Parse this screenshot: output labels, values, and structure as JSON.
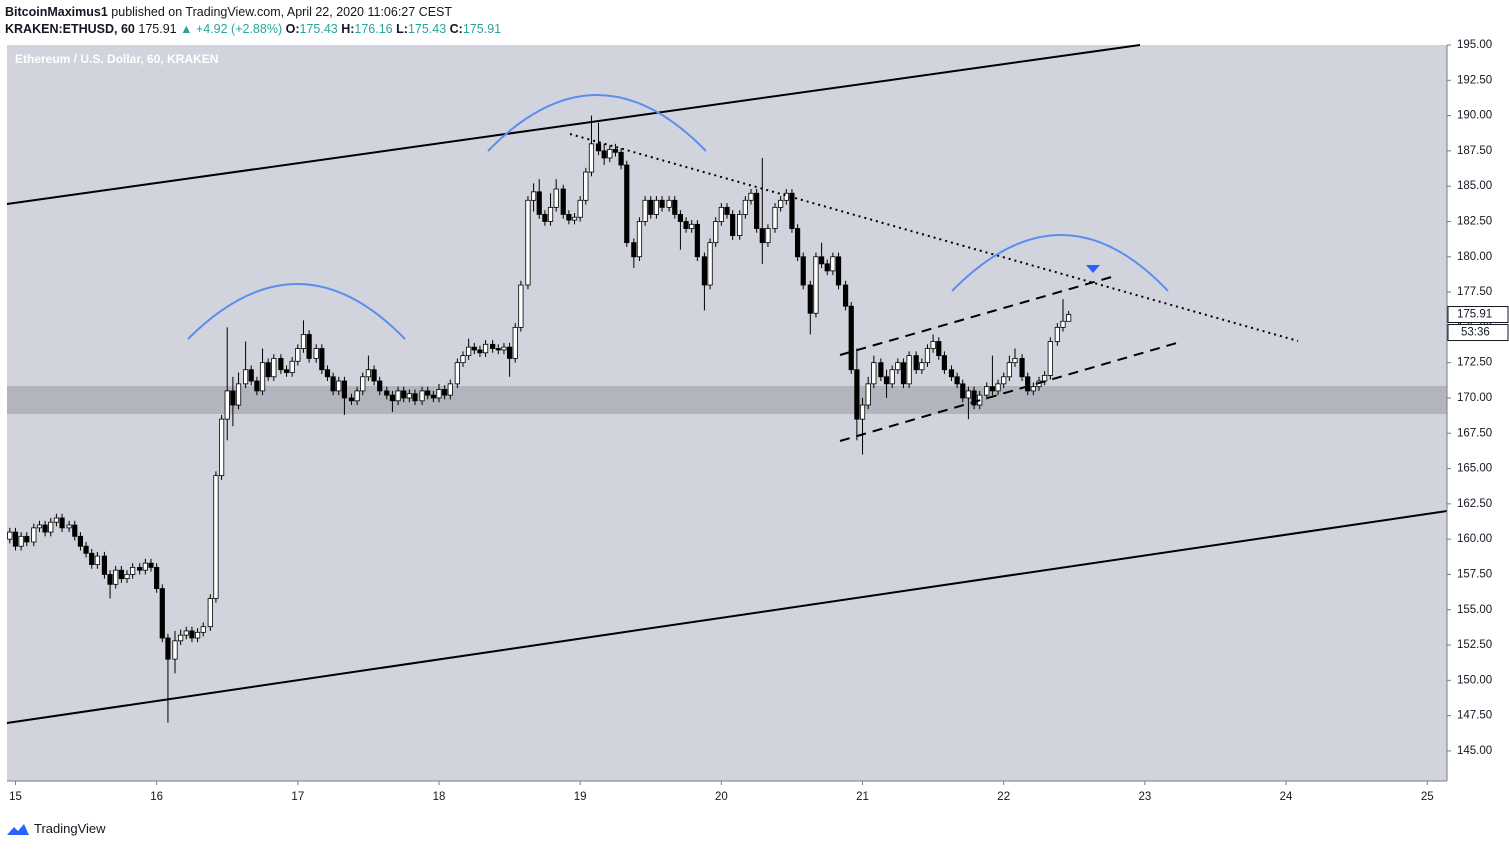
{
  "header": {
    "author": "BitcoinMaximus1",
    "published": "published on TradingView.com, April 22, 2020 11:06:27 CEST",
    "symbol": "KRAKEN:ETHUSD, 60",
    "last": "175.91",
    "change": "▲ +4.92 (+2.88%)",
    "open_label": "O:",
    "open": "175.43",
    "high_label": "H:",
    "high": "176.16",
    "low_label": "L:",
    "low": "175.43",
    "close_label": "C:",
    "close": "175.91"
  },
  "footer": {
    "brand": "TradingView"
  },
  "chart_data": {
    "type": "candlestick",
    "title": "Ethereum / U.S. Dollar, 60, KRAKEN",
    "up_color": "#ffffff",
    "down_color": "#000000",
    "wick_color": "#000000",
    "background": "#d1d4dc",
    "xlim": [
      14.94,
      25.14
    ],
    "xticks": [
      15,
      16,
      17,
      18,
      19,
      20,
      21,
      22,
      23,
      24,
      25
    ],
    "ylim": [
      142.87,
      195
    ],
    "yticks": [
      {
        "value": 145,
        "label": "145.00"
      },
      {
        "value": 147.5,
        "label": "147.50"
      },
      {
        "value": 150,
        "label": "150.00"
      },
      {
        "value": 152.5,
        "label": "152.50"
      },
      {
        "value": 155,
        "label": "155.00"
      },
      {
        "value": 157.5,
        "label": "157.50"
      },
      {
        "value": 160,
        "label": "160.00"
      },
      {
        "value": 162.5,
        "label": "162.50"
      },
      {
        "value": 165,
        "label": "165.00"
      },
      {
        "value": 167.5,
        "label": "167.50"
      },
      {
        "value": 170,
        "label": "170.00"
      },
      {
        "value": 172.5,
        "label": "172.50"
      },
      {
        "value": 175,
        "label": "175.00"
      },
      {
        "value": 177.5,
        "label": "177.50"
      },
      {
        "value": 180,
        "label": "180.00"
      },
      {
        "value": 182.5,
        "label": "182.50"
      },
      {
        "value": 185,
        "label": "185.00"
      },
      {
        "value": 187.5,
        "label": "187.50"
      },
      {
        "value": 190,
        "label": "190.00"
      },
      {
        "value": 192.5,
        "label": "192.50"
      },
      {
        "value": 195,
        "label": "195.00"
      }
    ],
    "price_tag": 175.91,
    "countdown": "53:36",
    "x": [
      14.96,
      15,
      15.04,
      15.08,
      15.13,
      15.17,
      15.21,
      15.25,
      15.29,
      15.33,
      15.38,
      15.42,
      15.46,
      15.5,
      15.54,
      15.58,
      15.63,
      15.67,
      15.71,
      15.75,
      15.79,
      15.83,
      15.88,
      15.92,
      15.96,
      16,
      16.04,
      16.08,
      16.13,
      16.17,
      16.21,
      16.25,
      16.29,
      16.33,
      16.38,
      16.42,
      16.46,
      16.5,
      16.54,
      16.58,
      16.63,
      16.67,
      16.71,
      16.75,
      16.79,
      16.83,
      16.88,
      16.92,
      16.96,
      17,
      17.04,
      17.08,
      17.13,
      17.17,
      17.21,
      17.25,
      17.29,
      17.33,
      17.38,
      17.42,
      17.46,
      17.5,
      17.54,
      17.58,
      17.63,
      17.67,
      17.71,
      17.75,
      17.79,
      17.83,
      17.88,
      17.92,
      17.96,
      18,
      18.04,
      18.08,
      18.13,
      18.17,
      18.21,
      18.25,
      18.29,
      18.33,
      18.38,
      18.42,
      18.46,
      18.5,
      18.54,
      18.58,
      18.63,
      18.67,
      18.71,
      18.75,
      18.79,
      18.83,
      18.88,
      18.92,
      18.96,
      19,
      19.04,
      19.08,
      19.13,
      19.17,
      19.21,
      19.25,
      19.29,
      19.33,
      19.38,
      19.42,
      19.46,
      19.5,
      19.54,
      19.58,
      19.63,
      19.67,
      19.71,
      19.75,
      19.79,
      19.83,
      19.88,
      19.92,
      19.96,
      20,
      20.04,
      20.08,
      20.13,
      20.17,
      20.21,
      20.25,
      20.29,
      20.33,
      20.38,
      20.42,
      20.46,
      20.5,
      20.54,
      20.58,
      20.63,
      20.67,
      20.71,
      20.75,
      20.79,
      20.83,
      20.88,
      20.92,
      20.96,
      21,
      21.04,
      21.08,
      21.13,
      21.17,
      21.21,
      21.25,
      21.29,
      21.33,
      21.38,
      21.42,
      21.46,
      21.5,
      21.54,
      21.58,
      21.63,
      21.67,
      21.71,
      21.75,
      21.79,
      21.83,
      21.88,
      21.92,
      21.96,
      22,
      22.04,
      22.08,
      22.13,
      22.17,
      22.21,
      22.25,
      22.29,
      22.33,
      22.38,
      22.42,
      22.46
    ],
    "open": [
      160,
      160.5,
      159.5,
      160.2,
      159.8,
      160.8,
      161,
      160.5,
      161.2,
      161.5,
      160.8,
      161,
      160.2,
      159.5,
      159,
      158.2,
      158.8,
      157.5,
      156.8,
      157.8,
      157.2,
      157.5,
      158,
      157.8,
      158.3,
      158,
      156.5,
      153,
      151.5,
      152.8,
      153.2,
      153.5,
      153,
      153.4,
      153.8,
      155.8,
      164.5,
      168.5,
      170.5,
      169.5,
      171,
      172,
      171.2,
      170.5,
      172.5,
      171.5,
      172.8,
      172,
      171.8,
      172.6,
      173.5,
      174.5,
      172.8,
      173.5,
      172,
      171.5,
      170.5,
      171.2,
      170,
      169.8,
      170.5,
      171.5,
      172,
      171.2,
      170.5,
      170.2,
      169.8,
      170.5,
      170,
      170.3,
      169.8,
      170.5,
      170.2,
      170,
      170.6,
      170.2,
      171,
      172.5,
      173,
      173.6,
      173.4,
      173.2,
      173.8,
      173.5,
      173.4,
      173.6,
      172.8,
      175,
      178,
      184,
      184.6,
      183,
      182.5,
      183.5,
      184.8,
      183,
      182.6,
      182.8,
      184,
      186,
      188,
      187.5,
      187,
      187.6,
      187.4,
      186.5,
      181,
      180,
      182.5,
      184,
      183,
      184,
      183.5,
      184,
      183,
      182.5,
      182,
      182.3,
      180,
      178,
      181,
      182.5,
      183.5,
      183,
      181.5,
      183,
      184,
      184.5,
      182,
      181,
      182,
      183.5,
      184,
      184.5,
      182,
      180,
      178,
      176,
      180,
      179.5,
      179,
      180,
      178,
      176.5,
      172,
      168.5,
      169.5,
      171,
      172.5,
      171.5,
      171,
      172,
      172.5,
      171,
      173,
      172,
      172.5,
      173.5,
      174,
      173,
      172,
      171.5,
      171,
      170,
      170.5,
      169.5,
      170.2,
      170.8,
      170.5,
      171,
      171.5,
      172.5,
      172.8,
      171.5,
      170.5,
      170.8,
      171.2,
      171.6,
      174,
      175,
      175.43
    ],
    "high": [
      160.8,
      160.8,
      160.5,
      160.5,
      161.1,
      161.3,
      161.3,
      161.5,
      161.8,
      161.8,
      161.3,
      161.3,
      160.5,
      159.8,
      159.3,
      159.1,
      159.1,
      157.8,
      158.1,
      158.1,
      157.8,
      158.3,
      158.3,
      158.6,
      158.6,
      158.3,
      156.8,
      153.3,
      153.5,
      153.6,
      153.8,
      153.8,
      153.7,
      154.1,
      156.1,
      164.8,
      168.8,
      175,
      171.5,
      171.8,
      174,
      172.3,
      171.5,
      173.5,
      172.8,
      173.1,
      173.1,
      172.3,
      172.9,
      173.8,
      175.5,
      174.8,
      173.8,
      173.8,
      172.3,
      171.8,
      171.5,
      171.5,
      170.3,
      170.8,
      171.8,
      173,
      172.3,
      171.5,
      170.8,
      170.5,
      170.8,
      170.8,
      170.6,
      170.6,
      170.8,
      170.8,
      170.5,
      171,
      170.9,
      171.3,
      172.8,
      173.3,
      174.2,
      173.9,
      173.7,
      174.1,
      174.1,
      173.8,
      173.9,
      173.9,
      175.3,
      178.3,
      184.3,
      185.2,
      185.5,
      183.3,
      184.5,
      185.5,
      185.1,
      183.3,
      183.1,
      184.3,
      186.3,
      190,
      189.5,
      188,
      187.9,
      188,
      187.7,
      186.8,
      181.3,
      182.8,
      184.3,
      184.3,
      184.3,
      184.3,
      184.3,
      184.3,
      183.3,
      182.8,
      182.6,
      182.6,
      180.3,
      181.3,
      182.8,
      183.8,
      183.8,
      183.3,
      183.3,
      184.3,
      184.8,
      184.8,
      187,
      182.3,
      183.8,
      184.3,
      184.8,
      184.8,
      182.3,
      180.3,
      178.3,
      180.3,
      181,
      179.8,
      180.3,
      180.3,
      178.3,
      176.8,
      173.5,
      170,
      171.5,
      173,
      172.8,
      172,
      172.3,
      172.8,
      172.8,
      173.3,
      173.3,
      172.8,
      173.8,
      174.5,
      174.3,
      173.3,
      172.3,
      171.8,
      171.3,
      170.8,
      170.8,
      170.5,
      171.1,
      173,
      171.3,
      171.8,
      173,
      173.5,
      173.1,
      171.8,
      171.1,
      171.5,
      171.9,
      174.3,
      175.3,
      177,
      176.16
    ],
    "low": [
      159.7,
      159.2,
      159.2,
      159.5,
      159.5,
      160.5,
      160.2,
      160.2,
      160.9,
      160.5,
      160.5,
      159.9,
      159.2,
      158.7,
      157.9,
      157.9,
      157.2,
      155.8,
      156.5,
      156.9,
      156.9,
      157.2,
      157.5,
      157.5,
      157.7,
      156.2,
      152.7,
      147,
      150.5,
      152.5,
      152.9,
      152.7,
      152.7,
      153.1,
      153.5,
      155.5,
      164.2,
      167,
      168,
      169.2,
      170.7,
      170.9,
      170.2,
      170.2,
      171.2,
      171.2,
      171.7,
      171.5,
      171.5,
      172.3,
      173.2,
      172.5,
      172.5,
      171.7,
      171.2,
      170.2,
      170.2,
      168.8,
      169.5,
      169.5,
      170.2,
      171.2,
      170.9,
      170.2,
      169.9,
      169,
      169.5,
      169.7,
      169.7,
      169.5,
      169.5,
      169.9,
      169.7,
      169.7,
      169.9,
      169.9,
      170.7,
      172.2,
      172.7,
      173.1,
      172.9,
      172.9,
      173.2,
      173.1,
      173.1,
      171.5,
      172.5,
      174.7,
      177.7,
      183.2,
      182.7,
      182.2,
      182.2,
      183.2,
      182.7,
      182.3,
      182.3,
      182.5,
      183.7,
      185.7,
      187.2,
      186.5,
      186.7,
      187.1,
      186.2,
      180.7,
      179.2,
      179.7,
      182.2,
      182.7,
      182.7,
      183.2,
      183.2,
      182.7,
      180.5,
      181.7,
      181.7,
      179.7,
      176.2,
      177.7,
      180.7,
      182.2,
      182.7,
      181.2,
      181.2,
      182.7,
      183.7,
      181.7,
      179.5,
      180.7,
      181.7,
      183.2,
      183.7,
      181.7,
      179.7,
      177.7,
      174.5,
      175.7,
      179.2,
      178.7,
      178.7,
      177.7,
      176.2,
      171.7,
      167,
      166,
      169.2,
      170.7,
      171.2,
      170,
      170.7,
      171.7,
      170.7,
      170.7,
      171.7,
      171.7,
      172.2,
      173.2,
      172.7,
      171.7,
      171.2,
      170.7,
      169.7,
      168.5,
      169.2,
      169.2,
      169.9,
      170.2,
      170.2,
      170.7,
      171.2,
      172.2,
      171.2,
      170.2,
      170.2,
      170.5,
      170.9,
      171.3,
      173.7,
      174.7,
      175.43
    ],
    "close": [
      160.5,
      159.5,
      160.2,
      159.8,
      160.8,
      161,
      160.5,
      161.2,
      161.5,
      160.8,
      161,
      160.2,
      159.5,
      159,
      158.2,
      158.8,
      157.5,
      156.8,
      157.8,
      157.2,
      157.5,
      158,
      157.8,
      158.3,
      158,
      156.5,
      153,
      151.5,
      152.8,
      153.2,
      153.5,
      153,
      153.4,
      153.8,
      155.8,
      164.5,
      168.5,
      170.5,
      169.5,
      171,
      172,
      171.2,
      170.5,
      172.5,
      171.5,
      172.8,
      172,
      171.8,
      172.6,
      173.5,
      174.5,
      172.8,
      173.5,
      172,
      171.5,
      170.5,
      171.2,
      170,
      169.8,
      170.5,
      171.5,
      172,
      171.2,
      170.5,
      170.2,
      169.8,
      170.5,
      170,
      170.3,
      169.8,
      170.5,
      170.2,
      170,
      170.6,
      170.2,
      171,
      172.5,
      173,
      173.6,
      173.4,
      173.2,
      173.8,
      173.5,
      173.4,
      173.6,
      172.8,
      175,
      178,
      184,
      184.6,
      183,
      182.5,
      183.5,
      184.8,
      183,
      182.6,
      182.8,
      184,
      186,
      188,
      187.5,
      187,
      187.6,
      187.4,
      186.5,
      181,
      180,
      182.5,
      184,
      183,
      184,
      183.5,
      184,
      183,
      182.5,
      182,
      182.3,
      180,
      178,
      181,
      182.5,
      183.5,
      183,
      181.5,
      183,
      184,
      184.5,
      182,
      181,
      182,
      183.5,
      184,
      184.5,
      182,
      180,
      178,
      176,
      180,
      179.5,
      179,
      180,
      178,
      176.5,
      172,
      168.5,
      169.5,
      171,
      172.5,
      171.5,
      171,
      172,
      172.5,
      171,
      173,
      172,
      172.5,
      173.5,
      174,
      173,
      172,
      171.5,
      171,
      170,
      170.5,
      169.5,
      170.2,
      170.8,
      170.5,
      171,
      171.5,
      172.5,
      172.8,
      171.5,
      170.5,
      170.8,
      171.2,
      171.6,
      174,
      175,
      175.43,
      175.91
    ]
  }
}
